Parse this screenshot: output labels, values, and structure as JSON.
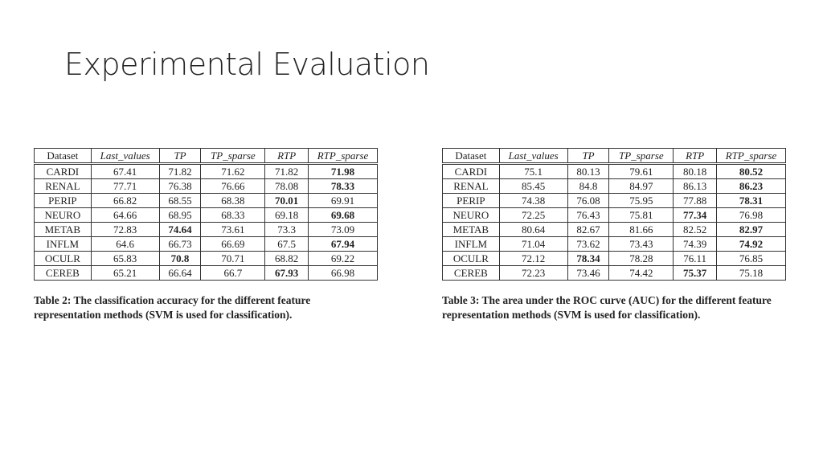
{
  "header": {
    "title": "Experimental Evaluation"
  },
  "tables": [
    {
      "columns": [
        "Dataset",
        "Last_values",
        "TP",
        "TP_sparse",
        "RTP",
        "RTP_sparse"
      ],
      "rows": [
        [
          "CARDI",
          67.41,
          71.82,
          71.62,
          71.82,
          71.98
        ],
        [
          "RENAL",
          77.71,
          76.38,
          76.66,
          78.08,
          78.33
        ],
        [
          "PERIP",
          66.82,
          68.55,
          68.38,
          70.01,
          69.91
        ],
        [
          "NEURO",
          64.66,
          68.95,
          68.33,
          69.18,
          69.68
        ],
        [
          "METAB",
          72.83,
          74.64,
          73.61,
          73.3,
          73.09
        ],
        [
          "INFLM",
          64.6,
          66.73,
          66.69,
          67.5,
          67.94
        ],
        [
          "OCULR",
          65.83,
          70.8,
          70.71,
          68.82,
          69.22
        ],
        [
          "CEREB",
          65.21,
          66.64,
          66.7,
          67.93,
          66.98
        ]
      ],
      "bold_columns": [
        5,
        5,
        4,
        5,
        2,
        5,
        2,
        4
      ],
      "caption": "Table 2: The classification accuracy for the different feature representation methods (SVM is used for classification)."
    },
    {
      "columns": [
        "Dataset",
        "Last_values",
        "TP",
        "TP_sparse",
        "RTP",
        "RTP_sparse"
      ],
      "rows": [
        [
          "CARDI",
          75.1,
          80.13,
          79.61,
          80.18,
          80.52
        ],
        [
          "RENAL",
          85.45,
          84.8,
          84.97,
          86.13,
          86.23
        ],
        [
          "PERIP",
          74.38,
          76.08,
          75.95,
          77.88,
          78.31
        ],
        [
          "NEURO",
          72.25,
          76.43,
          75.81,
          77.34,
          76.98
        ],
        [
          "METAB",
          80.64,
          82.67,
          81.66,
          82.52,
          82.97
        ],
        [
          "INFLM",
          71.04,
          73.62,
          73.43,
          74.39,
          74.92
        ],
        [
          "OCULR",
          72.12,
          78.34,
          78.28,
          76.11,
          76.85
        ],
        [
          "CEREB",
          72.23,
          73.46,
          74.42,
          75.37,
          75.18
        ]
      ],
      "bold_columns": [
        5,
        5,
        5,
        4,
        5,
        5,
        2,
        4
      ],
      "caption": "Table 3: The area under the ROC curve (AUC) for the different feature representation methods (SVM is used for classification)."
    }
  ]
}
